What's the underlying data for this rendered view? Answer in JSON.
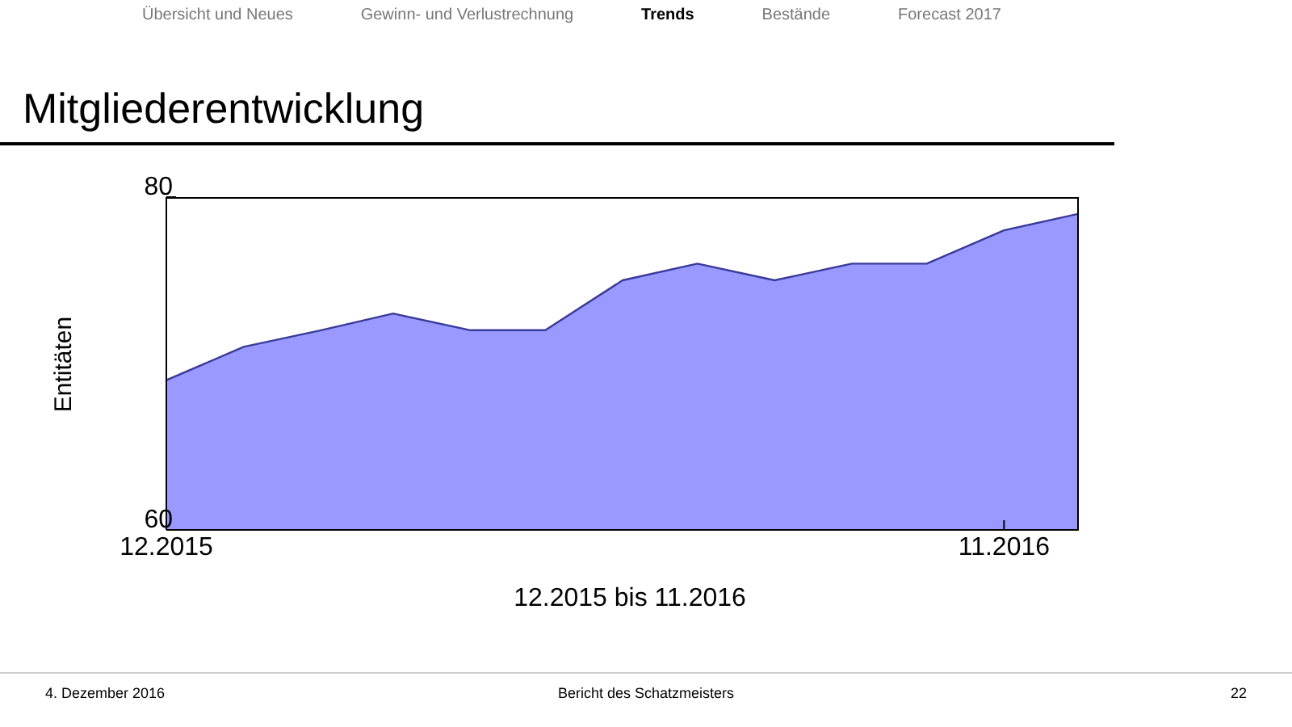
{
  "chart_data": {
    "type": "area",
    "title": "Mitgliederentwicklung",
    "xlabel": "12.2015 bis 11.2016",
    "ylabel": "Entitäten",
    "annotations": [
      "Übersicht und Neues",
      "Gewinn- und Verlustrechnung",
      "Trends",
      "Bestände",
      "Forecast 2017",
      "4. Dezember 2016",
      "Bericht des Schatzmeisters",
      "22"
    ],
    "x": [
      "2015-12",
      "2016-01",
      "2016-02",
      "2016-03",
      "2016-04",
      "2016-05",
      "2016-06",
      "2016-07",
      "2016-08",
      "2016-09",
      "2016-10",
      "2016-11",
      "2016-12"
    ],
    "series": [
      {
        "color": "#9999ff",
        "values": [
          69,
          71,
          72,
          73,
          72,
          72,
          75,
          76,
          75,
          76,
          76,
          78,
          79
        ]
      }
    ],
    "xlim": [
      "2015-12",
      "2016-12"
    ],
    "xticks": [
      {
        "value": "2015-12",
        "label": "12.2015"
      },
      {
        "value": "2016-11",
        "label": "11.2016"
      }
    ],
    "ylim": [
      60,
      80
    ],
    "yticks": [
      60,
      80
    ],
    "grid": false,
    "legend": false,
    "marker": "none",
    "line_style": "solid"
  }
}
